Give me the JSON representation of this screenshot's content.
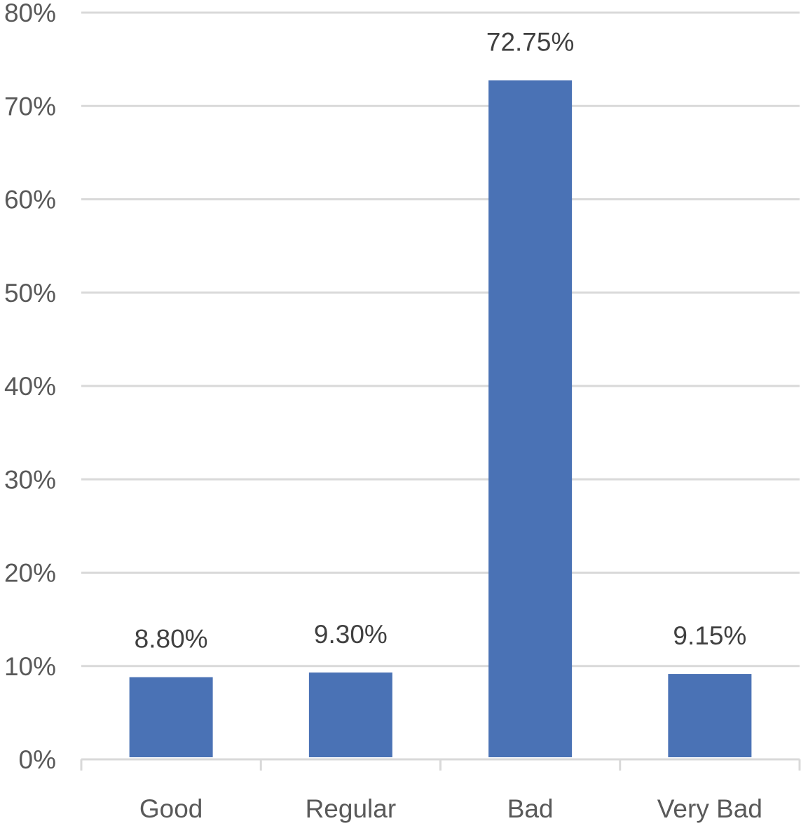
{
  "chart_data": {
    "type": "bar",
    "title": "",
    "xlabel": "",
    "ylabel": "",
    "categories": [
      "Good",
      "Regular",
      "Bad",
      "Very Bad"
    ],
    "values": [
      8.8,
      9.3,
      72.75,
      9.15
    ],
    "value_labels": [
      "8.80%",
      "9.30%",
      "72.75%",
      "9.15%"
    ],
    "ylim": [
      0,
      80
    ],
    "y_ticks": [
      0,
      10,
      20,
      30,
      40,
      50,
      60,
      70,
      80
    ],
    "y_tick_labels": [
      "0%",
      "10%",
      "20%",
      "30%",
      "40%",
      "50%",
      "60%",
      "70%",
      "80%"
    ],
    "grid": true,
    "legend": "none",
    "colors": {
      "bar": "#4a72b5",
      "grid": "#d9d9d9",
      "axis": "#d9d9d9",
      "text": "#595959",
      "label_text": "#404040"
    }
  }
}
